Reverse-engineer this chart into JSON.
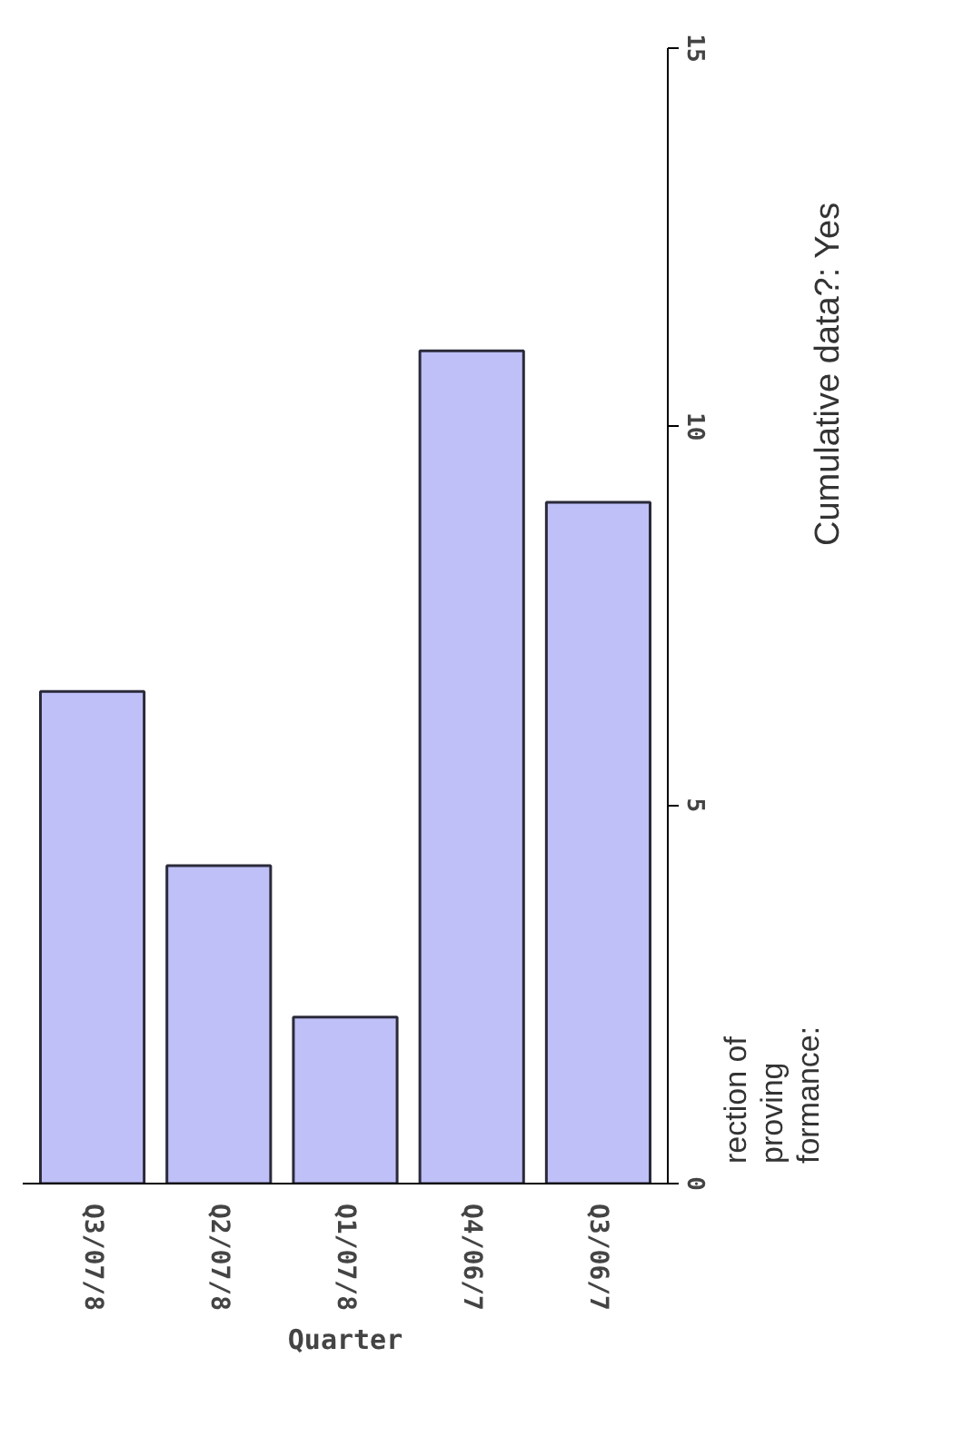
{
  "chart_data": {
    "type": "bar",
    "xlabel": "Quarter",
    "categories": [
      "Q3/07/8",
      "Q2/07/8",
      "Q1/07/8",
      "Q4/06/7",
      "Q3/06/7"
    ],
    "values": [
      6.5,
      4.2,
      2.2,
      11.0,
      9.0
    ],
    "color": "#c0c0f8",
    "ylim": [
      0,
      15
    ],
    "yticks": [
      0,
      5,
      10,
      15
    ],
    "grid": false,
    "annotations": [
      "Cumulative data?: Yes",
      "rection of",
      "proving",
      "formance:"
    ]
  }
}
